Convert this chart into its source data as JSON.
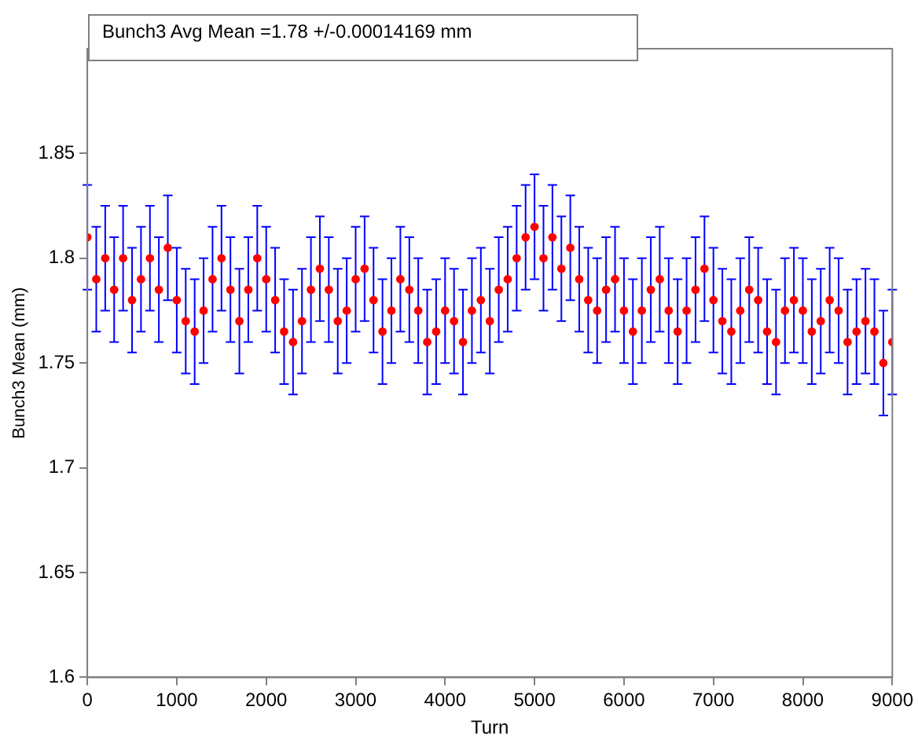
{
  "chart_data": {
    "type": "scatter",
    "xlabel": "Turn",
    "ylabel": "Bunch3 Mean (mm)",
    "annotations": [
      "Bunch3 Avg Mean =1.78 +/-0.00014169 mm"
    ],
    "xlim": [
      0,
      9000
    ],
    "xticks": [
      0,
      1000,
      2000,
      3000,
      4000,
      5000,
      6000,
      7000,
      8000,
      9000
    ],
    "ylim": [
      1.6,
      1.9
    ],
    "yticks": [
      1.6,
      1.65,
      1.7,
      1.75,
      1.8,
      1.85
    ],
    "grid": false,
    "legend": false,
    "marker": "circle",
    "x": [
      0,
      100,
      200,
      300,
      400,
      500,
      600,
      700,
      800,
      900,
      1000,
      1100,
      1200,
      1300,
      1400,
      1500,
      1600,
      1700,
      1800,
      1900,
      2000,
      2100,
      2200,
      2300,
      2400,
      2500,
      2600,
      2700,
      2800,
      2900,
      3000,
      3100,
      3200,
      3300,
      3400,
      3500,
      3600,
      3700,
      3800,
      3900,
      4000,
      4100,
      4200,
      4300,
      4400,
      4500,
      4600,
      4700,
      4800,
      4900,
      5000,
      5100,
      5200,
      5300,
      5400,
      5500,
      5600,
      5700,
      5800,
      5900,
      6000,
      6100,
      6200,
      6300,
      6400,
      6500,
      6600,
      6700,
      6800,
      6900,
      7000,
      7100,
      7200,
      7300,
      7400,
      7500,
      7600,
      7700,
      7800,
      7900,
      8000,
      8100,
      8200,
      8300,
      8400,
      8500,
      8600,
      8700,
      8800,
      8900,
      9000
    ],
    "series": [
      {
        "color": "#ff0000",
        "values": [
          1.81,
          1.79,
          1.8,
          1.785,
          1.8,
          1.78,
          1.79,
          1.8,
          1.785,
          1.805,
          1.78,
          1.77,
          1.765,
          1.775,
          1.79,
          1.8,
          1.785,
          1.77,
          1.785,
          1.8,
          1.79,
          1.78,
          1.765,
          1.76,
          1.77,
          1.785,
          1.795,
          1.785,
          1.77,
          1.775,
          1.79,
          1.795,
          1.78,
          1.765,
          1.775,
          1.79,
          1.785,
          1.775,
          1.76,
          1.765,
          1.775,
          1.77,
          1.76,
          1.775,
          1.78,
          1.77,
          1.785,
          1.79,
          1.8,
          1.81,
          1.815,
          1.8,
          1.81,
          1.795,
          1.805,
          1.79,
          1.78,
          1.775,
          1.785,
          1.79,
          1.775,
          1.765,
          1.775,
          1.785,
          1.79,
          1.775,
          1.765,
          1.775,
          1.785,
          1.795,
          1.78,
          1.77,
          1.765,
          1.775,
          1.785,
          1.78,
          1.765,
          1.76,
          1.775,
          1.78,
          1.775,
          1.765,
          1.77,
          1.78,
          1.775,
          1.76,
          1.765,
          1.77,
          1.765,
          1.75,
          1.76
        ],
        "errors": [
          0.025,
          0.025,
          0.025,
          0.025,
          0.025,
          0.025,
          0.025,
          0.025,
          0.025,
          0.025,
          0.025,
          0.025,
          0.025,
          0.025,
          0.025,
          0.025,
          0.025,
          0.025,
          0.025,
          0.025,
          0.025,
          0.025,
          0.025,
          0.025,
          0.025,
          0.025,
          0.025,
          0.025,
          0.025,
          0.025,
          0.025,
          0.025,
          0.025,
          0.025,
          0.025,
          0.025,
          0.025,
          0.025,
          0.025,
          0.025,
          0.025,
          0.025,
          0.025,
          0.025,
          0.025,
          0.025,
          0.025,
          0.025,
          0.025,
          0.025,
          0.025,
          0.025,
          0.025,
          0.025,
          0.025,
          0.025,
          0.025,
          0.025,
          0.025,
          0.025,
          0.025,
          0.025,
          0.025,
          0.025,
          0.025,
          0.025,
          0.025,
          0.025,
          0.025,
          0.025,
          0.025,
          0.025,
          0.025,
          0.025,
          0.025,
          0.025,
          0.025,
          0.025,
          0.025,
          0.025,
          0.025,
          0.025,
          0.025,
          0.025,
          0.025,
          0.025,
          0.025,
          0.025,
          0.025,
          0.025,
          0.025
        ]
      }
    ]
  }
}
